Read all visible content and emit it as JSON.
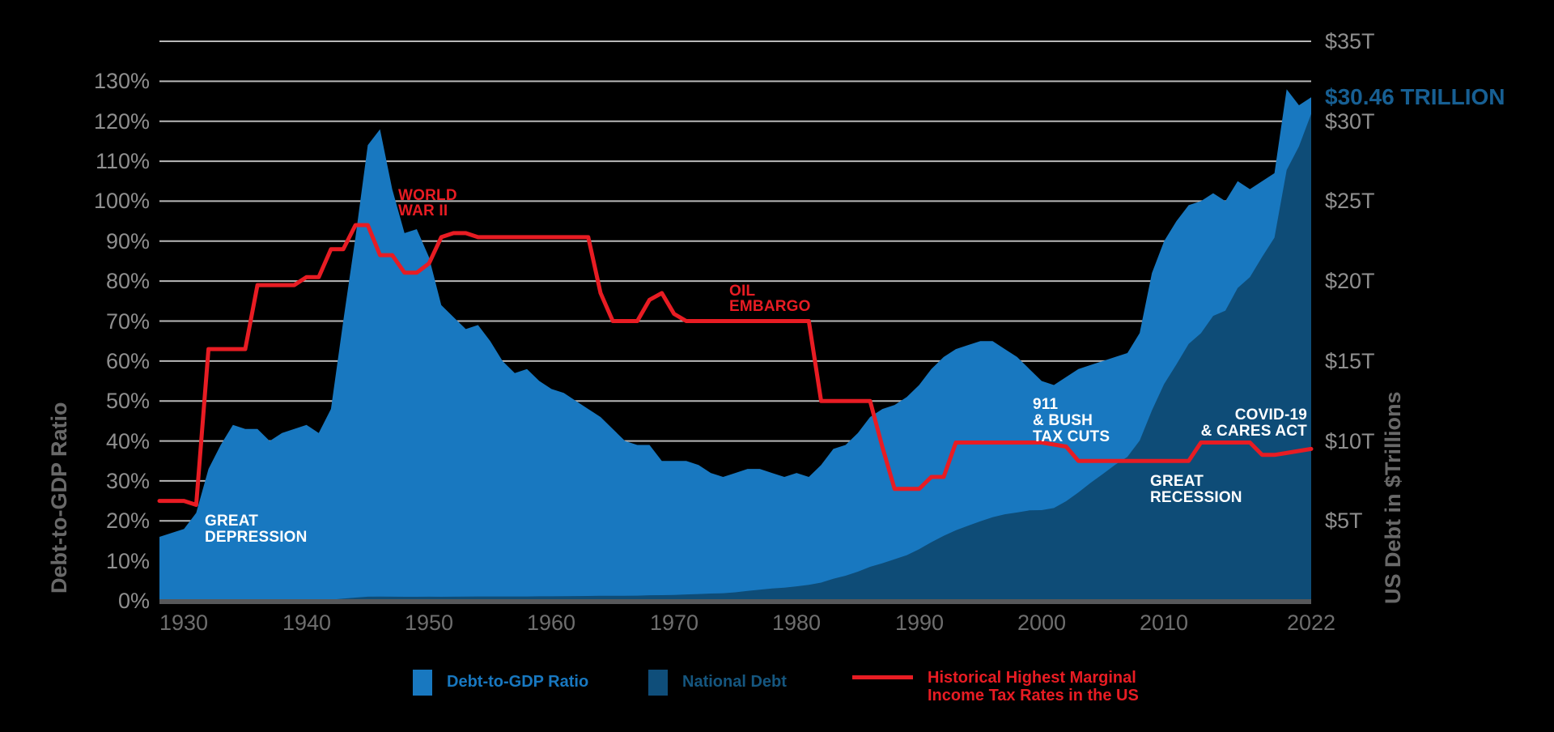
{
  "page": {
    "background": "#000000"
  },
  "callout": {
    "text": "$30.46 TRILLION",
    "color": "#175f93"
  },
  "axes": {
    "left": {
      "title": "Debt-to-GDP Ratio",
      "unit": "%",
      "range": [
        0,
        140
      ],
      "gridline_step": 10,
      "tick_labels": [
        "0%",
        "10%",
        "20%",
        "30%",
        "40%",
        "50%",
        "60%",
        "70%",
        "80%",
        "90%",
        "100%",
        "110%",
        "120%",
        "130%"
      ]
    },
    "right": {
      "title": "US Debt in $Trillions",
      "unit": "$T",
      "range_trillions": [
        0,
        35
      ],
      "tick_labels": [
        "$5T",
        "$10T",
        "$15T",
        "$20T",
        "$25T",
        "$30T",
        "$35T"
      ]
    },
    "x": {
      "tick_years": [
        1930,
        1940,
        1950,
        1960,
        1970,
        1980,
        1990,
        2000,
        2010,
        2022
      ]
    }
  },
  "annotations": {
    "great_depression": "GREAT\nDEPRESSION",
    "world_war_ii": "WORLD\nWAR II",
    "oil_embargo": "OIL\nEMBARGO",
    "bush_tax_cuts": "911\n& BUSH\nTAX CUTS",
    "great_recession": "GREAT\nRECESSION",
    "covid": "COVID-19\n& CARES ACT"
  },
  "legend": {
    "items": [
      {
        "label": "Debt-to-GDP Ratio",
        "marker": "square",
        "color": "#1878c0",
        "text_color": "#1878c0"
      },
      {
        "label": "National Debt",
        "marker": "square",
        "color": "#0f4e7a",
        "text_color": "#15567f"
      },
      {
        "label": "Historical Highest Marginal\nIncome Tax Rates in the US",
        "marker": "line",
        "color": "#e81c23",
        "text_color": "#e81c23"
      }
    ]
  },
  "chart_data": {
    "type": "combo-area-line",
    "x_label": "Year",
    "x_range": [
      1928,
      2022
    ],
    "left_ylim": [
      0,
      140
    ],
    "right_ylim": [
      0,
      35
    ],
    "grid": true,
    "grid_color": "#cccccc",
    "baseline_color": "#57585a",
    "legend_position": "bottom",
    "x": [
      1928,
      1929,
      1930,
      1931,
      1932,
      1933,
      1934,
      1935,
      1936,
      1937,
      1938,
      1939,
      1940,
      1941,
      1942,
      1943,
      1944,
      1945,
      1946,
      1947,
      1948,
      1949,
      1950,
      1951,
      1952,
      1953,
      1954,
      1955,
      1956,
      1957,
      1958,
      1959,
      1960,
      1961,
      1962,
      1963,
      1964,
      1965,
      1966,
      1967,
      1968,
      1969,
      1970,
      1971,
      1972,
      1973,
      1974,
      1975,
      1976,
      1977,
      1978,
      1979,
      1980,
      1981,
      1982,
      1983,
      1984,
      1985,
      1986,
      1987,
      1988,
      1989,
      1990,
      1991,
      1992,
      1993,
      1994,
      1995,
      1996,
      1997,
      1998,
      1999,
      2000,
      2001,
      2002,
      2003,
      2004,
      2005,
      2006,
      2007,
      2008,
      2009,
      2010,
      2011,
      2012,
      2013,
      2014,
      2015,
      2016,
      2017,
      2018,
      2019,
      2020,
      2021,
      2022
    ],
    "series": [
      {
        "name": "Debt-to-GDP Ratio",
        "type": "area",
        "axis": "left",
        "unit": "%",
        "color": "#1878c0",
        "values": [
          16,
          17,
          18,
          22,
          33,
          39,
          44,
          43,
          43,
          40,
          42,
          43,
          44,
          42,
          48,
          70,
          91,
          114,
          118,
          103,
          92,
          93,
          86,
          74,
          71,
          68,
          69,
          65,
          60,
          57,
          58,
          55,
          53,
          52,
          50,
          48,
          46,
          43,
          40,
          39,
          39,
          35,
          35,
          35,
          34,
          32,
          31,
          32,
          33,
          33,
          32,
          31,
          32,
          31,
          34,
          38,
          39,
          42,
          46,
          48,
          49,
          51,
          54,
          58,
          61,
          63,
          64,
          65,
          65,
          63,
          61,
          58,
          55,
          54,
          56,
          58,
          59,
          60,
          61,
          62,
          67,
          82,
          90,
          95,
          99,
          100,
          102,
          100,
          105,
          103,
          105,
          107,
          128,
          124,
          126
        ]
      },
      {
        "name": "National Debt",
        "type": "area",
        "axis": "right",
        "unit": "$T",
        "color": "#0e4c77",
        "final_value_label": "$30.46 TRILLION",
        "values": [
          0.017,
          0.017,
          0.016,
          0.017,
          0.019,
          0.023,
          0.027,
          0.029,
          0.034,
          0.036,
          0.037,
          0.04,
          0.043,
          0.049,
          0.072,
          0.137,
          0.201,
          0.259,
          0.269,
          0.258,
          0.252,
          0.253,
          0.257,
          0.255,
          0.259,
          0.266,
          0.271,
          0.274,
          0.273,
          0.271,
          0.276,
          0.285,
          0.286,
          0.289,
          0.298,
          0.306,
          0.312,
          0.317,
          0.32,
          0.326,
          0.348,
          0.354,
          0.371,
          0.398,
          0.427,
          0.458,
          0.475,
          0.533,
          0.62,
          0.699,
          0.772,
          0.827,
          0.908,
          0.998,
          1.142,
          1.377,
          1.572,
          1.823,
          2.125,
          2.35,
          2.602,
          2.857,
          3.233,
          3.665,
          4.065,
          4.411,
          4.693,
          4.974,
          5.225,
          5.413,
          5.526,
          5.656,
          5.674,
          5.807,
          6.228,
          6.783,
          7.379,
          7.933,
          8.507,
          9.008,
          10.025,
          11.91,
          13.562,
          14.79,
          16.066,
          16.738,
          17.824,
          18.151,
          19.573,
          20.245,
          21.516,
          22.719,
          26.945,
          28.429,
          30.46
        ]
      },
      {
        "name": "Historical Highest Marginal Income Tax Rates in the US",
        "type": "line",
        "axis": "left",
        "unit": "%",
        "color": "#e81c23",
        "values": [
          25,
          25,
          25,
          24,
          63,
          63,
          63,
          63,
          79,
          79,
          79,
          79,
          81,
          81,
          88,
          88,
          94,
          94,
          86.5,
          86.5,
          82.1,
          82.1,
          84.4,
          91,
          92,
          92,
          91,
          91,
          91,
          91,
          91,
          91,
          91,
          91,
          91,
          91,
          77,
          70,
          70,
          70,
          75.3,
          77,
          71.8,
          70,
          70,
          70,
          70,
          70,
          70,
          70,
          70,
          70,
          70,
          70,
          50,
          50,
          50,
          50,
          50,
          38.5,
          28,
          28,
          28,
          31,
          31,
          39.6,
          39.6,
          39.6,
          39.6,
          39.6,
          39.6,
          39.6,
          39.6,
          39.1,
          38.6,
          35,
          35,
          35,
          35,
          35,
          35,
          35,
          35,
          35,
          35,
          39.6,
          39.6,
          39.6,
          39.6,
          39.6,
          36.5,
          36.5,
          37,
          37.5,
          38
        ]
      }
    ]
  }
}
